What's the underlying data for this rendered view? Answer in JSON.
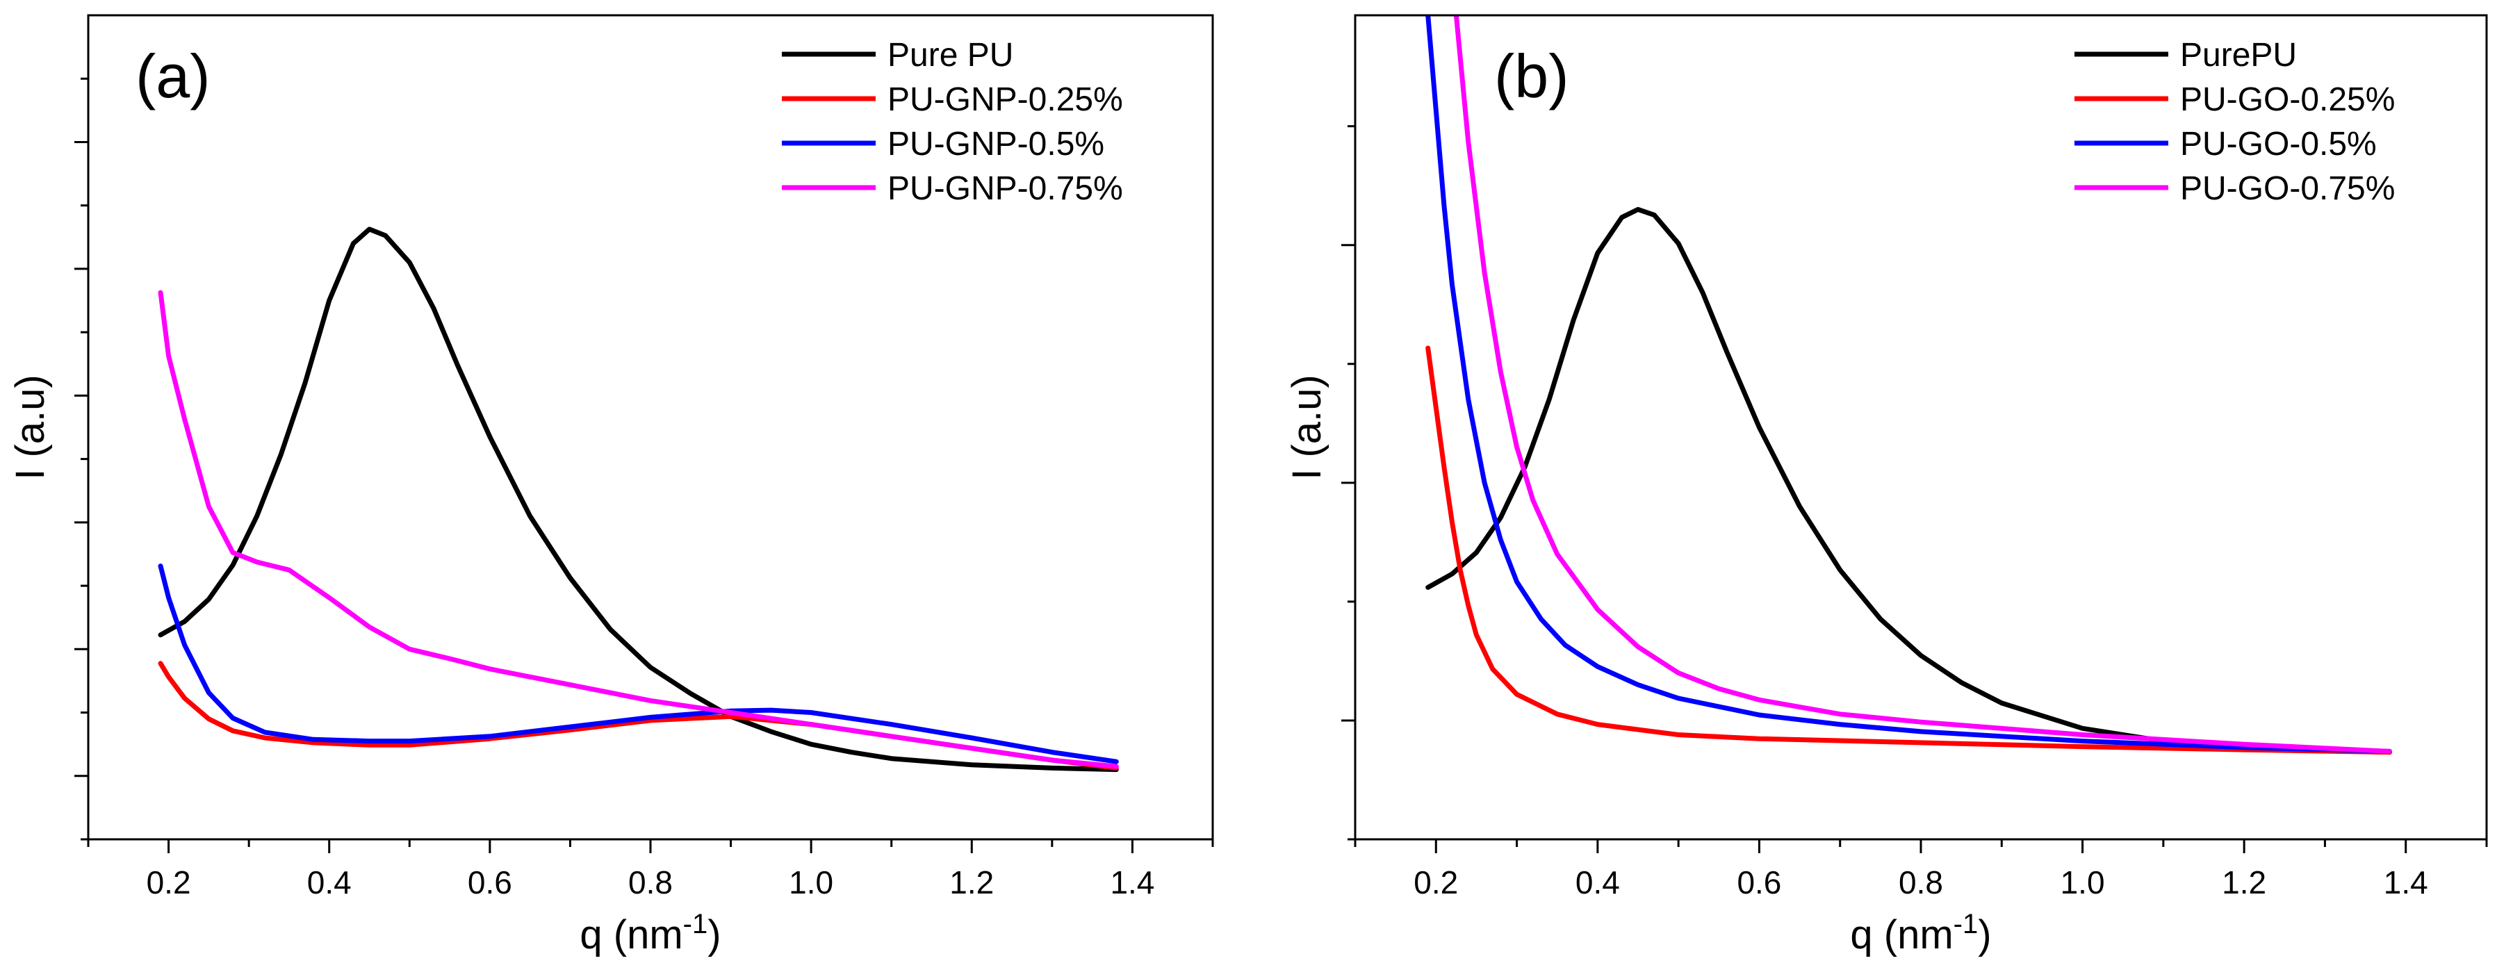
{
  "chart_data": [
    {
      "type": "line",
      "panel_label": "(a)",
      "xlabel": "q (nm",
      "xlabel_sup": "-1",
      "xlabel_close": ")",
      "ylabel": "I (a.u)",
      "xlim": [
        0.1,
        1.5
      ],
      "ylim": [
        0,
        1.04
      ],
      "xticks": [
        0.2,
        0.4,
        0.6,
        0.8,
        1.0,
        1.2,
        1.4
      ],
      "xtick_labels": [
        "0.2",
        "0.4",
        "0.6",
        "0.8",
        "1.0",
        "1.2",
        "1.4"
      ],
      "yticks_major": [
        0.08,
        0.24,
        0.4,
        0.56,
        0.72,
        0.88
      ],
      "yticks_minor": [
        0.0,
        0.16,
        0.32,
        0.48,
        0.64,
        0.8,
        0.96
      ],
      "legend_position": "top-right",
      "series": [
        {
          "name": "Pure PU",
          "color": "#000000",
          "x": [
            0.19,
            0.22,
            0.25,
            0.28,
            0.31,
            0.34,
            0.37,
            0.4,
            0.43,
            0.45,
            0.47,
            0.5,
            0.53,
            0.56,
            0.6,
            0.65,
            0.7,
            0.75,
            0.8,
            0.85,
            0.9,
            0.95,
            1.0,
            1.05,
            1.1,
            1.2,
            1.3,
            1.38
          ],
          "y": [
            0.258,
            0.275,
            0.303,
            0.346,
            0.408,
            0.486,
            0.576,
            0.68,
            0.752,
            0.77,
            0.762,
            0.728,
            0.67,
            0.598,
            0.508,
            0.408,
            0.33,
            0.265,
            0.217,
            0.184,
            0.155,
            0.136,
            0.12,
            0.11,
            0.102,
            0.094,
            0.09,
            0.088
          ]
        },
        {
          "name": "PU-GNP-0.25%",
          "color": "#ff0000",
          "x": [
            0.19,
            0.2,
            0.22,
            0.25,
            0.28,
            0.32,
            0.38,
            0.45,
            0.5,
            0.6,
            0.7,
            0.8,
            0.9,
            1.0,
            1.1,
            1.2,
            1.3,
            1.38
          ],
          "y": [
            0.222,
            0.205,
            0.178,
            0.152,
            0.137,
            0.128,
            0.122,
            0.119,
            0.119,
            0.127,
            0.138,
            0.15,
            0.155,
            0.145,
            0.13,
            0.115,
            0.1,
            0.09
          ]
        },
        {
          "name": "PU-GNP-0.5%",
          "color": "#0000ff",
          "x": [
            0.19,
            0.2,
            0.22,
            0.25,
            0.28,
            0.32,
            0.38,
            0.45,
            0.5,
            0.6,
            0.7,
            0.8,
            0.9,
            0.95,
            1.0,
            1.1,
            1.2,
            1.3,
            1.38
          ],
          "y": [
            0.345,
            0.305,
            0.245,
            0.185,
            0.153,
            0.135,
            0.126,
            0.124,
            0.124,
            0.13,
            0.142,
            0.154,
            0.162,
            0.163,
            0.16,
            0.145,
            0.128,
            0.11,
            0.098
          ]
        },
        {
          "name": "PU-GNP-0.75%",
          "color": "#ff00ff",
          "x": [
            0.19,
            0.2,
            0.22,
            0.25,
            0.28,
            0.31,
            0.35,
            0.4,
            0.45,
            0.5,
            0.55,
            0.6,
            0.7,
            0.8,
            0.9,
            1.0,
            1.1,
            1.2,
            1.3,
            1.38
          ],
          "y": [
            0.69,
            0.61,
            0.53,
            0.42,
            0.362,
            0.35,
            0.34,
            0.305,
            0.268,
            0.24,
            0.228,
            0.215,
            0.195,
            0.175,
            0.16,
            0.145,
            0.13,
            0.115,
            0.1,
            0.092
          ]
        }
      ]
    },
    {
      "type": "line",
      "panel_label": "(b)",
      "xlabel": "q (nm",
      "xlabel_sup": "-1",
      "xlabel_close": ")",
      "ylabel": "I (a.u)",
      "xlim": [
        0.1,
        1.5
      ],
      "ylim": [
        0,
        1.04
      ],
      "xticks": [
        0.2,
        0.4,
        0.6,
        0.8,
        1.0,
        1.2,
        1.4
      ],
      "xtick_labels": [
        "0.2",
        "0.4",
        "0.6",
        "0.8",
        "1.0",
        "1.2",
        "1.4"
      ],
      "yticks_major": [
        0.15,
        0.45,
        0.75
      ],
      "yticks_minor": [
        0.0,
        0.3,
        0.6,
        0.9
      ],
      "legend_position": "top-right",
      "series": [
        {
          "name": "PurePU",
          "color": "#000000",
          "x": [
            0.19,
            0.22,
            0.25,
            0.28,
            0.31,
            0.34,
            0.37,
            0.4,
            0.43,
            0.45,
            0.47,
            0.5,
            0.53,
            0.56,
            0.6,
            0.65,
            0.7,
            0.75,
            0.8,
            0.85,
            0.9,
            1.0,
            1.1,
            1.2,
            1.3,
            1.38
          ],
          "y": [
            0.318,
            0.335,
            0.362,
            0.406,
            0.47,
            0.555,
            0.655,
            0.74,
            0.785,
            0.795,
            0.788,
            0.752,
            0.69,
            0.615,
            0.52,
            0.42,
            0.34,
            0.278,
            0.232,
            0.198,
            0.172,
            0.14,
            0.124,
            0.116,
            0.112,
            0.11
          ]
        },
        {
          "name": "PU-GO-0.25%",
          "color": "#ff0000",
          "x": [
            0.19,
            0.2,
            0.21,
            0.22,
            0.23,
            0.24,
            0.25,
            0.27,
            0.3,
            0.35,
            0.4,
            0.5,
            0.6,
            0.8,
            1.0,
            1.2,
            1.38
          ],
          "y": [
            0.62,
            0.545,
            0.47,
            0.4,
            0.34,
            0.295,
            0.258,
            0.215,
            0.183,
            0.158,
            0.145,
            0.132,
            0.127,
            0.122,
            0.117,
            0.113,
            0.11
          ]
        },
        {
          "name": "PU-GO-0.5%",
          "color": "#0000ff",
          "x": [
            0.19,
            0.2,
            0.21,
            0.22,
            0.24,
            0.26,
            0.28,
            0.3,
            0.33,
            0.36,
            0.4,
            0.45,
            0.5,
            0.6,
            0.7,
            0.8,
            1.0,
            1.2,
            1.38
          ],
          "y": [
            1.04,
            0.92,
            0.8,
            0.7,
            0.555,
            0.45,
            0.378,
            0.325,
            0.278,
            0.245,
            0.218,
            0.195,
            0.178,
            0.157,
            0.145,
            0.136,
            0.124,
            0.116,
            0.111
          ]
        },
        {
          "name": "PU-GO-0.75%",
          "color": "#ff00ff",
          "x": [
            0.225,
            0.24,
            0.26,
            0.28,
            0.3,
            0.32,
            0.35,
            0.4,
            0.45,
            0.5,
            0.55,
            0.6,
            0.7,
            0.8,
            1.0,
            1.2,
            1.38
          ],
          "y": [
            1.04,
            0.88,
            0.715,
            0.59,
            0.495,
            0.428,
            0.36,
            0.29,
            0.243,
            0.21,
            0.19,
            0.176,
            0.158,
            0.148,
            0.132,
            0.12,
            0.111
          ]
        }
      ]
    }
  ]
}
